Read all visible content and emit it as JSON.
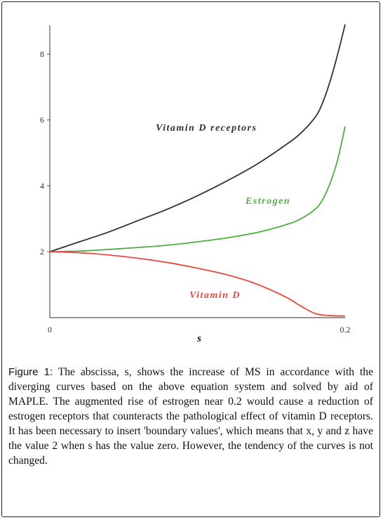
{
  "chart_data": {
    "type": "line",
    "xlabel": "s",
    "ylabel": "",
    "xlim": [
      0,
      0.2
    ],
    "ylim": [
      0,
      9
    ],
    "x_ticks": [
      "0",
      "0.2"
    ],
    "y_ticks": [
      "2",
      "4",
      "6",
      "8"
    ],
    "y_tick_values": [
      2,
      4,
      6,
      8
    ],
    "series": [
      {
        "name": "Vitamin D receptors",
        "color": "#303030",
        "x": [
          0,
          0.02,
          0.04,
          0.06,
          0.08,
          0.1,
          0.12,
          0.14,
          0.16,
          0.17,
          0.18,
          0.185,
          0.19,
          0.195,
          0.2
        ],
        "y": [
          2.0,
          2.3,
          2.6,
          2.95,
          3.3,
          3.7,
          4.15,
          4.65,
          5.25,
          5.6,
          6.1,
          6.55,
          7.2,
          8.0,
          8.9
        ]
      },
      {
        "name": "Estrogen",
        "color": "#4fae3f",
        "x": [
          0,
          0.02,
          0.04,
          0.06,
          0.08,
          0.1,
          0.12,
          0.14,
          0.16,
          0.17,
          0.18,
          0.185,
          0.19,
          0.195,
          0.2
        ],
        "y": [
          2.0,
          2.02,
          2.07,
          2.13,
          2.2,
          2.3,
          2.42,
          2.58,
          2.82,
          3.0,
          3.3,
          3.6,
          4.1,
          4.8,
          5.8
        ]
      },
      {
        "name": "Vitamin D",
        "color": "#e8473f",
        "x": [
          0,
          0.02,
          0.04,
          0.06,
          0.08,
          0.1,
          0.12,
          0.14,
          0.16,
          0.17,
          0.18,
          0.19,
          0.2
        ],
        "y": [
          2.0,
          1.97,
          1.9,
          1.8,
          1.67,
          1.5,
          1.3,
          1.02,
          0.62,
          0.35,
          0.12,
          0.06,
          0.05
        ]
      }
    ],
    "annotations": [
      {
        "text": "Vitamin D receptors",
        "color": "#303030"
      },
      {
        "text": "Estrogen",
        "color": "#4fae3f"
      },
      {
        "text": "Vitamin D",
        "color": "#e8473f"
      }
    ],
    "grid": false
  },
  "caption": {
    "label": "Figure 1:",
    "text": "The abscissa, s, shows the increase of MS in accordance with the diverging curves based on the above equation system and solved by aid of MAPLE. The augmented rise of estrogen near 0.2 would cause a reduction of estrogen receptors that counteracts the pathological effect of vitamin D receptors. It has been necessary to insert 'boundary values', which means that x, y and z have the value 2 when s has the value zero. However, the tendency of the curves is not changed."
  }
}
